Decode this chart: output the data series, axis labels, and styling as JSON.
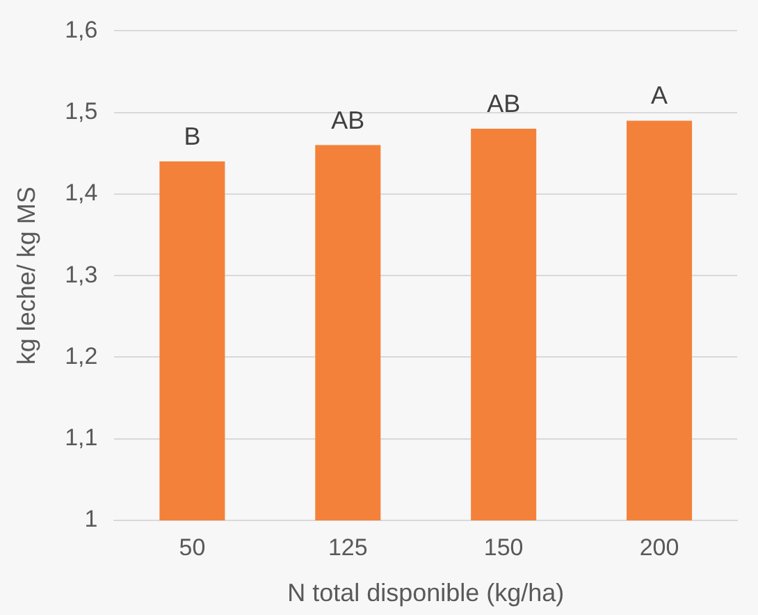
{
  "chart_data": {
    "type": "bar",
    "xlabel": "N total disponible (kg/ha)",
    "ylabel": "kg leche/ kg MS",
    "categories": [
      "50",
      "125",
      "150",
      "200"
    ],
    "values": [
      1.44,
      1.46,
      1.48,
      1.49
    ],
    "color": "#f4813a",
    "ylim": [
      1,
      1.6
    ],
    "yticks": [
      1,
      {
        "value": 1.1,
        "label": "1,1"
      },
      {
        "value": 1.2,
        "label": "1,2"
      },
      {
        "value": 1.3,
        "label": "1,3"
      },
      {
        "value": 1.4,
        "label": "1,4"
      },
      {
        "value": 1.5,
        "label": "1,5"
      },
      {
        "value": 1.6,
        "label": "1,6"
      }
    ],
    "grid": "y",
    "legend": false,
    "annotations": [
      {
        "text": "B",
        "x": "50",
        "y": 1.44
      },
      {
        "text": "AB",
        "x": "125",
        "y": 1.46
      },
      {
        "text": "AB",
        "x": "150",
        "y": 1.48
      },
      {
        "text": "A",
        "x": "200",
        "y": 1.49
      }
    ]
  }
}
